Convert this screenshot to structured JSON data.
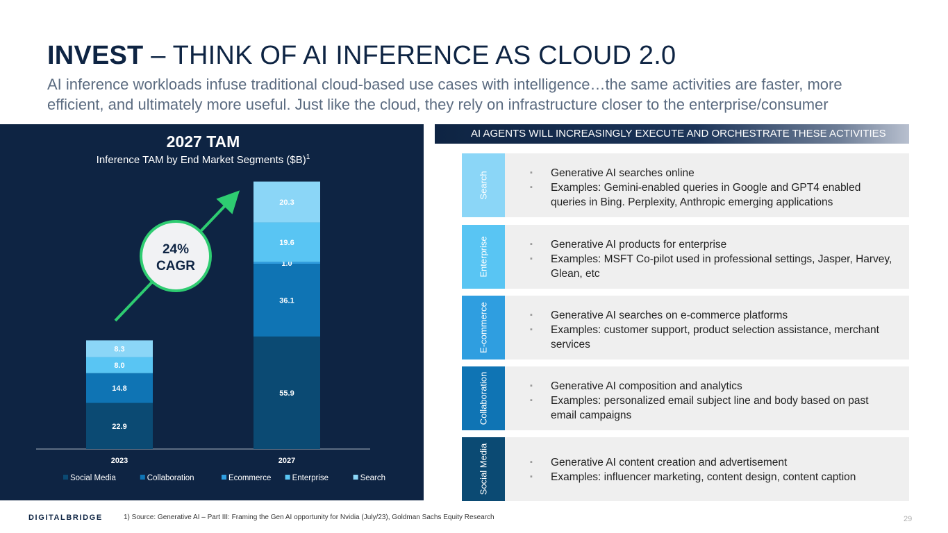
{
  "header": {
    "title_strong": "INVEST",
    "title_rest": " – THINK OF AI INFERENCE AS CLOUD 2.0",
    "subtitle": "AI inference workloads infuse traditional cloud-based use cases with intelligence…the same activities are faster, more efficient, and ultimately more useful. Just like the cloud, they rely on infrastructure closer to the enterprise/consumer"
  },
  "chart_panel": {
    "title": "2027 TAM",
    "subtitle": "Inference TAM by End Market Segments ($B)",
    "subtitle_footnote_mark": "1",
    "cagr_value": "24%",
    "cagr_label": "CAGR"
  },
  "chart_data": {
    "type": "bar",
    "stacked": true,
    "title": "2027 TAM",
    "subtitle": "Inference TAM by End Market Segments ($B)",
    "categories": [
      "2023",
      "2027"
    ],
    "series": [
      {
        "name": "Social Media",
        "values": [
          22.9,
          55.9
        ],
        "color": "#0b4a73"
      },
      {
        "name": "Collaboration",
        "values": [
          14.8,
          36.1
        ],
        "color": "#0f74b4"
      },
      {
        "name": "Ecommerce",
        "values": [
          null,
          1.0
        ],
        "color": "#2f9ee0"
      },
      {
        "name": "Enterprise",
        "values": [
          8.0,
          19.6
        ],
        "color": "#59c5f3"
      },
      {
        "name": "Search",
        "values": [
          8.3,
          20.3
        ],
        "color": "#8bd6f7"
      }
    ],
    "legend_position": "bottom",
    "grid": false
  },
  "right_panel": {
    "header": "AI AGENTS WILL INCREASINGLY EXECUTE AND ORCHESTRATE THESE ACTIVITIES",
    "segments": [
      {
        "label": "Search",
        "color": "#8bd6f7",
        "bullets": [
          "Generative AI searches online",
          "Examples: Gemini-enabled queries in Google and GPT4 enabled queries in Bing. Perplexity, Anthropic emerging applications"
        ]
      },
      {
        "label": "Enterprise",
        "color": "#59c5f3",
        "bullets": [
          "Generative AI products for enterprise",
          "Examples: MSFT Co-pilot used in professional settings, Jasper, Harvey, Glean, etc"
        ]
      },
      {
        "label": "E-commerce",
        "color": "#2f9ee0",
        "bullets": [
          "Generative AI searches on e-commerce platforms",
          "Examples: customer support, product selection assistance, merchant services"
        ]
      },
      {
        "label": "Collaboration",
        "color": "#0f74b4",
        "bullets": [
          "Generative AI composition and analytics",
          "Examples: personalized email subject line and body based on past email campaigns"
        ]
      },
      {
        "label": "Social Media",
        "color": "#0b4a73",
        "bullets": [
          "Generative AI content creation and advertisement",
          "Examples: influencer marketing, content design, content caption"
        ]
      }
    ]
  },
  "footer": {
    "logo": "DIGITALBRIDGE",
    "source_note": "1) Source: Generative AI – Part III: Framing the Gen AI opportunity for Nvidia (July/23), Goldman Sachs Equity Research",
    "page_number": "29"
  }
}
